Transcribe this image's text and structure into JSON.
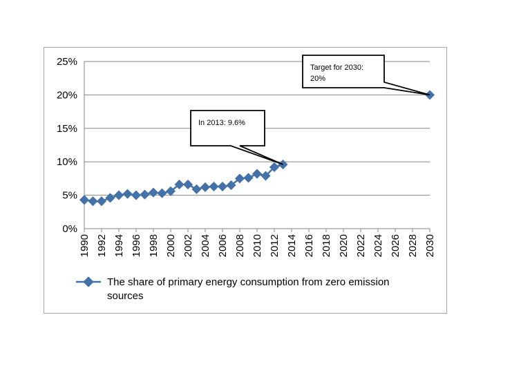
{
  "chart_data": {
    "type": "line",
    "x": [
      1990,
      1991,
      1992,
      1993,
      1994,
      1995,
      1996,
      1997,
      1998,
      1999,
      2000,
      2001,
      2002,
      2003,
      2004,
      2005,
      2006,
      2007,
      2008,
      2009,
      2010,
      2011,
      2012,
      2013,
      2030
    ],
    "series": [
      {
        "name": "The share of primary energy consumption from zero emission sources",
        "values": [
          4.3,
          4.1,
          4.1,
          4.6,
          5.0,
          5.2,
          5.0,
          5.1,
          5.4,
          5.3,
          5.6,
          6.6,
          6.6,
          5.9,
          6.2,
          6.3,
          6.3,
          6.5,
          7.5,
          7.6,
          8.2,
          7.9,
          9.2,
          9.6,
          20.0
        ]
      }
    ],
    "ylim": [
      0,
      25
    ],
    "yticks": [
      "0%",
      "5%",
      "10%",
      "15%",
      "20%",
      "25%"
    ],
    "xlim": [
      1990,
      2030
    ],
    "xticks": [
      "1990",
      "1992",
      "1994",
      "1996",
      "1998",
      "2000",
      "2002",
      "2004",
      "2006",
      "2008",
      "2010",
      "2012",
      "2014",
      "2016",
      "2018",
      "2020",
      "2022",
      "2024",
      "2026",
      "2028",
      "2030"
    ],
    "grid": true,
    "legend": "bottom",
    "legend_lines": [
      "The share of primary energy consumption from zero emission",
      "sources"
    ],
    "color": "#4472a8",
    "annotations": [
      {
        "lines": [
          "In 2013: 9.6%"
        ],
        "x": 2013,
        "y": 9.6
      },
      {
        "lines": [
          "Target for 2030:",
          "20%"
        ],
        "x": 2030,
        "y": 20.0
      }
    ]
  }
}
